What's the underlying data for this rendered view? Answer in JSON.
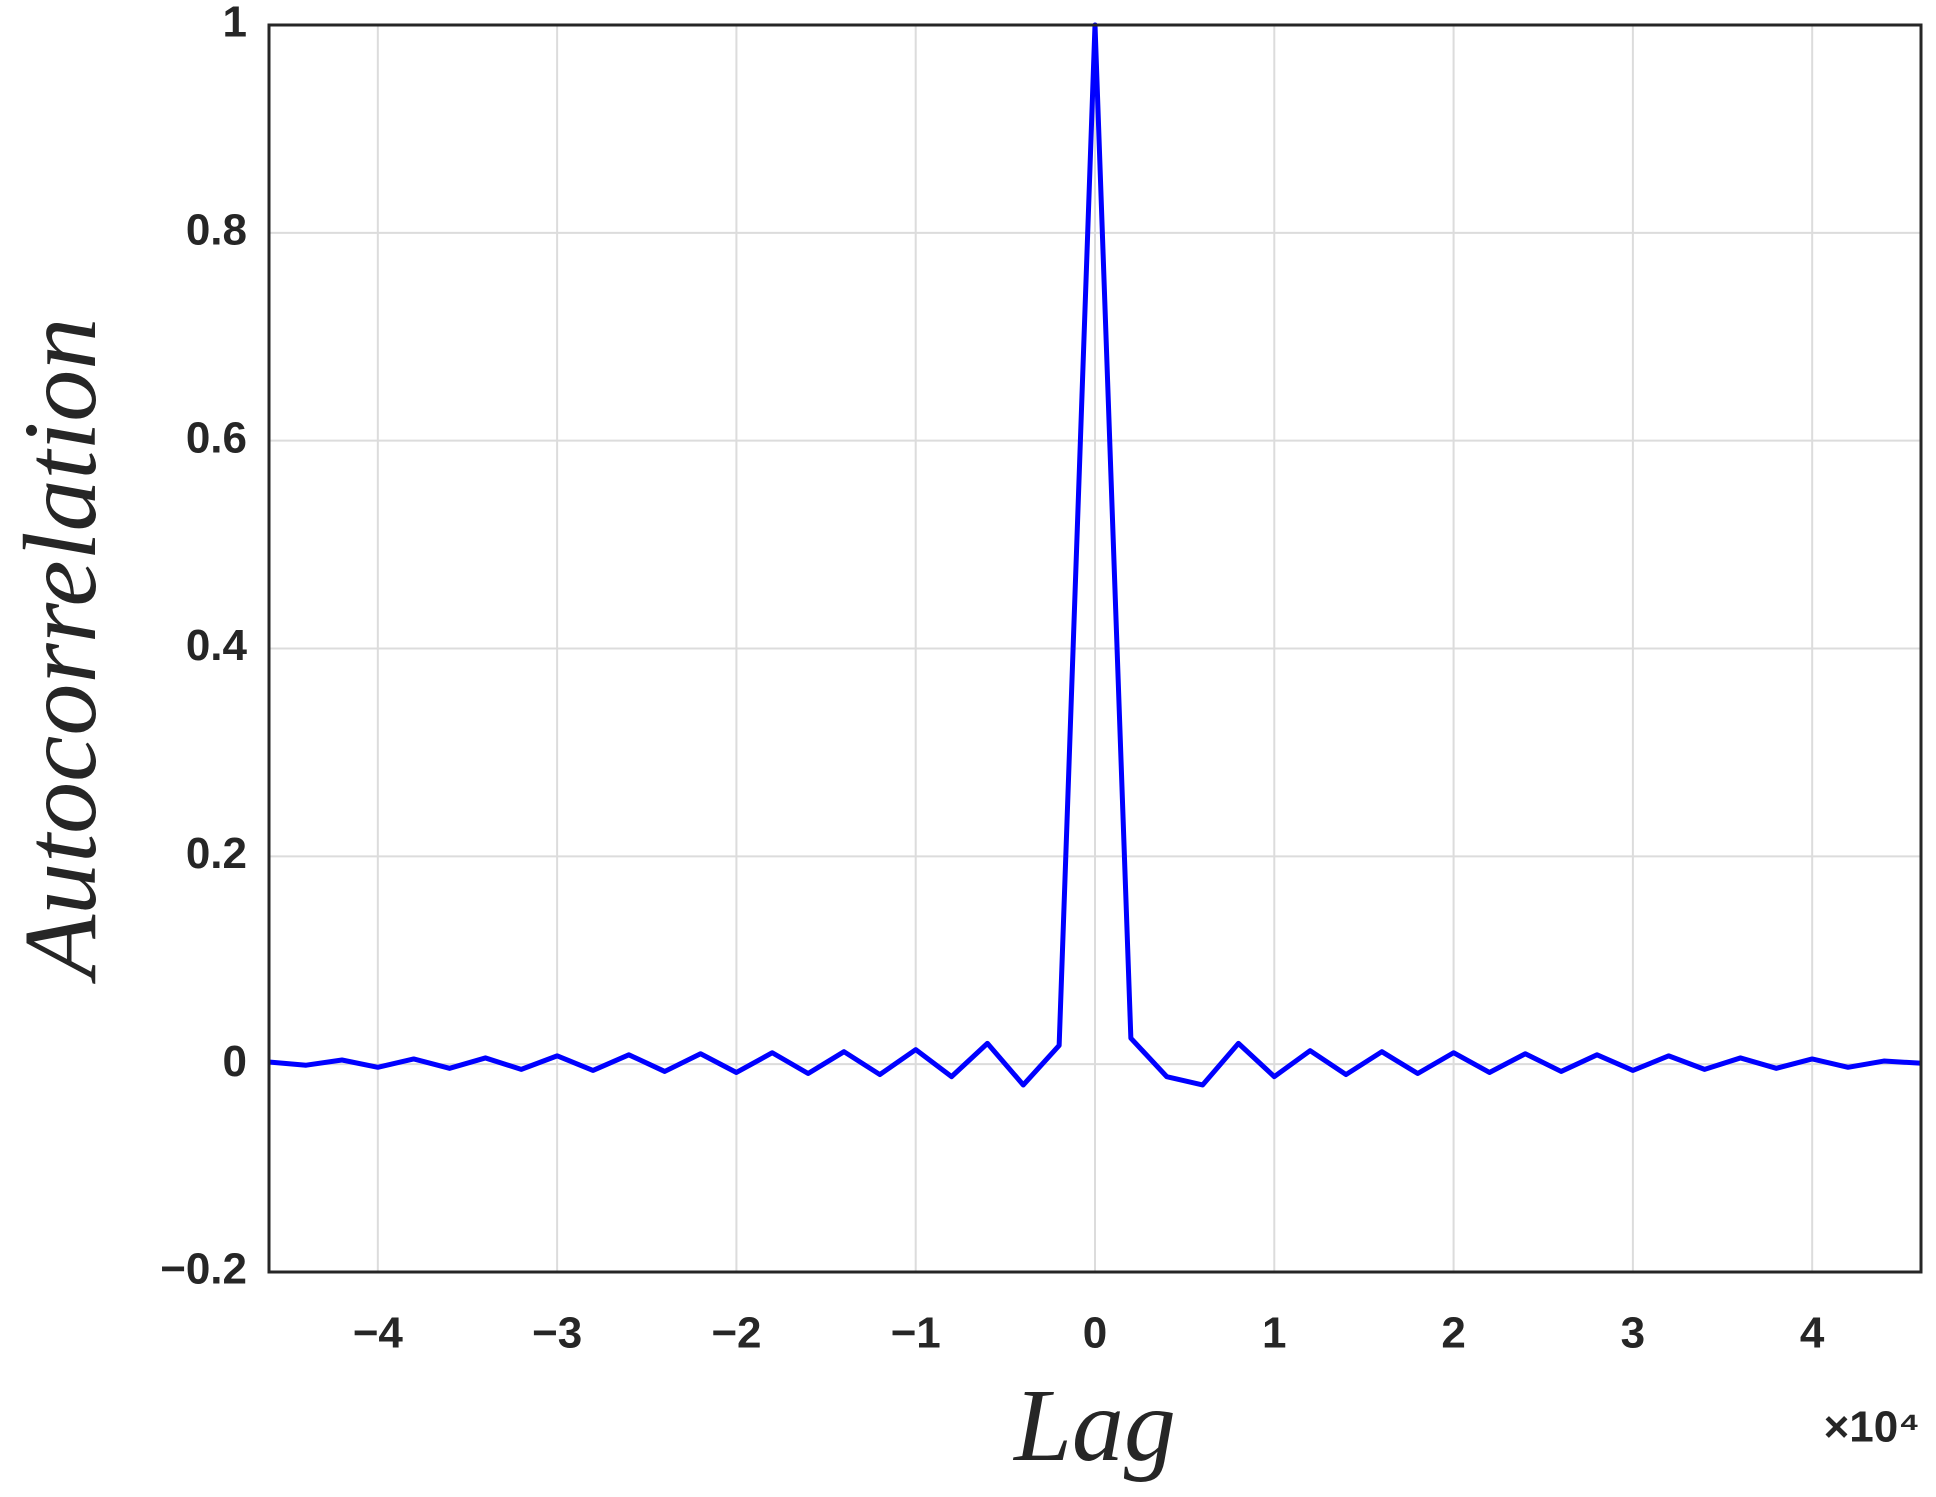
{
  "chart_data": {
    "type": "line",
    "x_label": "Lag",
    "y_label": "Autocorrelation",
    "x_multiplier": "×10⁴",
    "x": [
      -4.6,
      -4.4,
      -4.2,
      -4.0,
      -3.8,
      -3.6,
      -3.4,
      -3.2,
      -3.0,
      -2.8,
      -2.6,
      -2.4,
      -2.2,
      -2.0,
      -1.8,
      -1.6,
      -1.4,
      -1.2,
      -1.0,
      -0.8,
      -0.6,
      -0.4,
      -0.2,
      0,
      0.2,
      0.4,
      0.6,
      0.8,
      1.0,
      1.2,
      1.4,
      1.6,
      1.8,
      2.0,
      2.2,
      2.4,
      2.6,
      2.8,
      3.0,
      3.2,
      3.4,
      3.6,
      3.8,
      4.0,
      4.2,
      4.4,
      4.6
    ],
    "series": [
      {
        "color": "#0000ff",
        "values": [
          0.002,
          -0.001,
          0.004,
          -0.003,
          0.005,
          -0.004,
          0.006,
          -0.005,
          0.008,
          -0.006,
          0.009,
          -0.007,
          0.01,
          -0.008,
          0.011,
          -0.009,
          0.012,
          -0.01,
          0.014,
          -0.012,
          0.02,
          -0.02,
          0.018,
          1,
          0.025,
          -0.012,
          -0.02,
          0.02,
          -0.012,
          0.013,
          -0.01,
          0.012,
          -0.009,
          0.011,
          -0.008,
          0.01,
          -0.007,
          0.009,
          -0.006,
          0.008,
          -0.005,
          0.006,
          -0.004,
          0.005,
          -0.003,
          0.003,
          0.001
        ]
      }
    ],
    "xlim": [
      -4.607,
      4.607
    ],
    "xticks": [
      {
        "value": -4,
        "label": "−4"
      },
      {
        "value": -3,
        "label": "−3"
      },
      {
        "value": -2,
        "label": "−2"
      },
      {
        "value": -1,
        "label": "−1"
      },
      0,
      1,
      2,
      3,
      4
    ],
    "ylim": [
      -0.2,
      1
    ],
    "yticks": [
      {
        "value": -0.2,
        "label": "−0.2"
      },
      0,
      0.2,
      0.4,
      0.6,
      0.8,
      1
    ],
    "grid": true
  }
}
